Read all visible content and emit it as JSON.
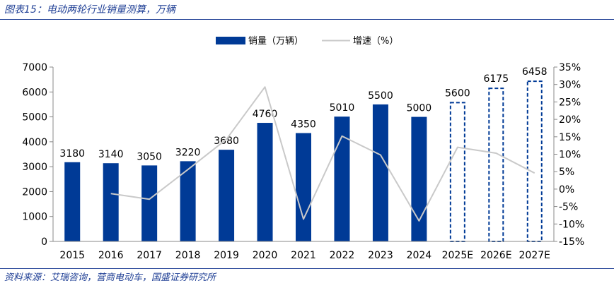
{
  "figure": {
    "title": "图表15：电动两轮行业销量测算，万辆",
    "source": "资料来源：艾瑞咨询，营商电动车，国盛证券研究所"
  },
  "colors": {
    "bar": "#003a96",
    "line": "#c9c9c9",
    "frame": "#1f3f95"
  },
  "chart_data": {
    "type": "bar",
    "categories": [
      "2015",
      "2016",
      "2017",
      "2018",
      "2019",
      "2020",
      "2021",
      "2022",
      "2023",
      "2024",
      "2025E",
      "2026E",
      "2027E"
    ],
    "series": [
      {
        "name": "销量（万辆）",
        "type": "bar",
        "axis": "left",
        "values": [
          3180,
          3140,
          3050,
          3220,
          3680,
          4760,
          4350,
          5010,
          5500,
          5000,
          5600,
          6175,
          6458
        ],
        "data_labels": [
          "3180",
          "3140",
          "3050",
          "3220",
          "3680",
          "4760",
          "4350",
          "5010",
          "5500",
          "5000",
          "5600",
          "6175",
          "6458"
        ],
        "forecast_from_index": 10,
        "forecast_style": "dashed outline"
      },
      {
        "name": "增速（%）",
        "type": "line",
        "axis": "right",
        "values": [
          null,
          -1.3,
          -2.9,
          5.6,
          14.3,
          29.3,
          -8.6,
          15.2,
          9.8,
          -9.1,
          12.0,
          10.3,
          4.6
        ]
      }
    ],
    "y_left": {
      "min": 0,
      "max": 7000,
      "ticks": [
        "0",
        "1000",
        "2000",
        "3000",
        "4000",
        "5000",
        "6000",
        "7000"
      ]
    },
    "y_right": {
      "min": -15,
      "max": 35,
      "ticks": [
        "-15%",
        "-10%",
        "-5%",
        "0%",
        "5%",
        "10%",
        "15%",
        "20%",
        "25%",
        "30%",
        "35%"
      ]
    },
    "grid": false,
    "legend_position": "top-center"
  }
}
